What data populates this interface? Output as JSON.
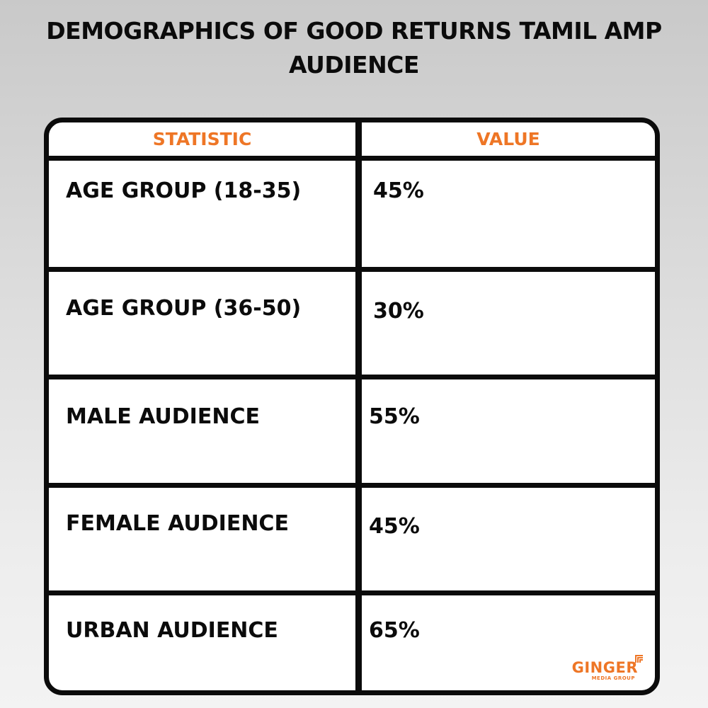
{
  "title": {
    "line1": "DEMOGRAPHICS OF GOOD RETURNS TAMIL AMP",
    "line2": "AUDIENCE"
  },
  "table": {
    "headers": {
      "statistic": "STATISTIC",
      "value": "VALUE"
    },
    "rows": [
      {
        "statistic": "AGE GROUP (18-35)",
        "value": "45%"
      },
      {
        "statistic": "AGE GROUP (36-50)",
        "value": "30%"
      },
      {
        "statistic": "MALE AUDIENCE",
        "value": "55%"
      },
      {
        "statistic": "FEMALE AUDIENCE",
        "value": "45%"
      },
      {
        "statistic": "URBAN AUDIENCE",
        "value": "65%"
      }
    ]
  },
  "logo": {
    "name": "GINGER",
    "subtitle": "MEDIA GROUP"
  },
  "colors": {
    "accent": "#ee7626",
    "border": "#0b0b0b",
    "background": "#dcdcdc"
  }
}
